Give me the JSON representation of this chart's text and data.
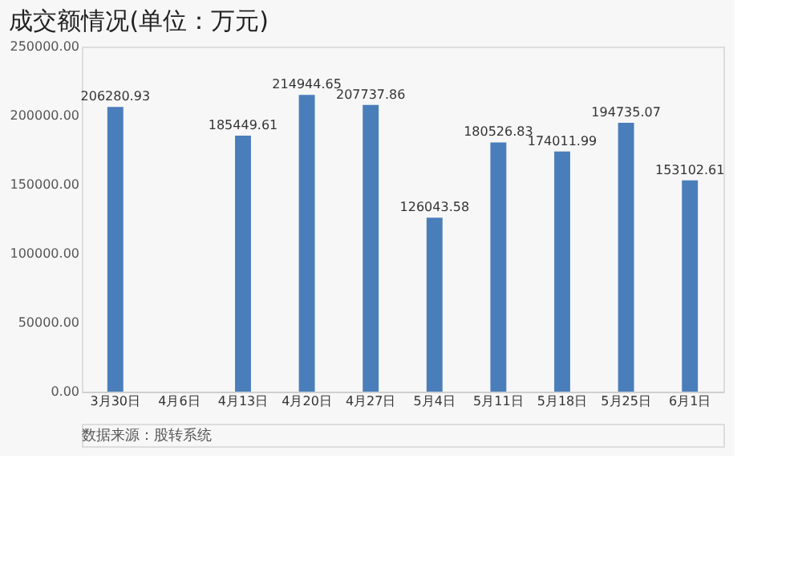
{
  "chart_data": {
    "type": "bar",
    "title": "成交额情况(单位：万元)",
    "categories": [
      "3月30日",
      "4月6日",
      "4月13日",
      "4月20日",
      "4月27日",
      "5月4日",
      "5月11日",
      "5月18日",
      "5月25日",
      "6月1日"
    ],
    "values": [
      206280.93,
      null,
      185449.61,
      214944.65,
      207737.86,
      126043.58,
      180526.83,
      174011.99,
      194735.07,
      153102.61
    ],
    "color": "#4a7ebb",
    "ylim": [
      0,
      250000
    ],
    "yticks": [
      {
        "value": 0,
        "label": "0.00"
      },
      {
        "value": 50000,
        "label": "50000.00"
      },
      {
        "value": 100000,
        "label": "100000.00"
      },
      {
        "value": 150000,
        "label": "150000.00"
      },
      {
        "value": 200000,
        "label": "200000.00"
      },
      {
        "value": 250000,
        "label": "250000.00"
      }
    ],
    "data_labels": true,
    "grid": false,
    "annotations": [
      "数据来源：股转系统"
    ]
  }
}
